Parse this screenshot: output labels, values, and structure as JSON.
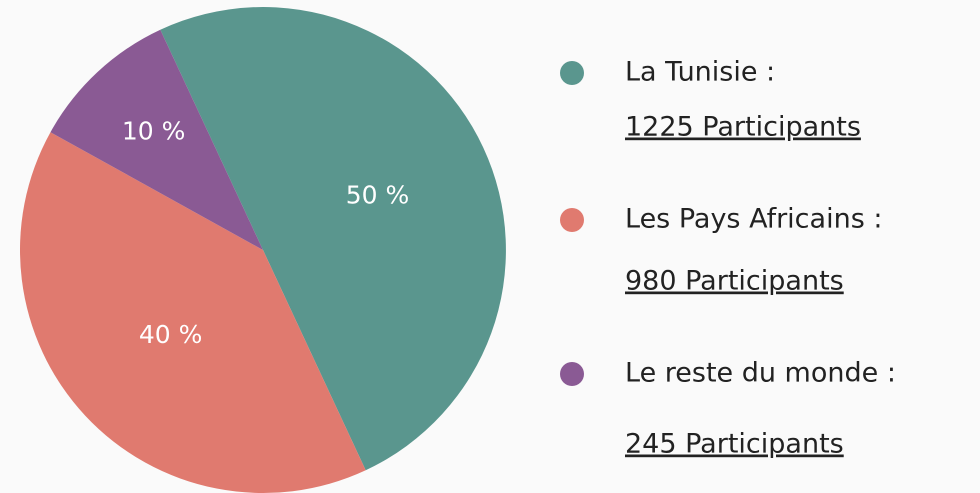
{
  "chart_data": {
    "type": "pie",
    "categories": [
      "La Tunisie :",
      "Les Pays Africains :",
      "Le reste du monde :"
    ],
    "details": [
      "1225 Participants",
      "980 Participants",
      "245 Participants"
    ],
    "values": [
      50,
      40,
      10
    ],
    "value_labels": [
      "50 %",
      "40 %",
      "10 %"
    ],
    "colors": [
      "#5a968e",
      "#e07a6f",
      "#8a5a94"
    ]
  }
}
